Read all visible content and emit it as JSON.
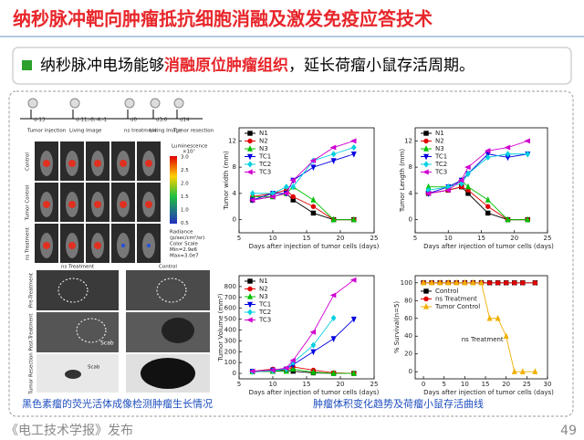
{
  "header": {
    "title": "纳秒脉冲靶向肿瘤抵抗细胞消融及激发免疫应答技术"
  },
  "bullet": {
    "parts": [
      "纳秒脉冲电场能够",
      "消融原位肿瘤组织",
      "，延长荷瘤小鼠存活周期。"
    ]
  },
  "imaging": {
    "timeline": [
      {
        "day": "d-13",
        "event": "Tumor injection"
      },
      {
        "day": "d-11,-8,-4,-1",
        "event": "Living Image"
      },
      {
        "day": "d0",
        "event": "ns treatment"
      },
      {
        "day": "d3,6",
        "event": "Living Image"
      },
      {
        "day": "d14",
        "event": "Tumor resection"
      }
    ],
    "rows": [
      "Control",
      "Tumor Control",
      "ns Treatment"
    ],
    "colorbar": {
      "title": "Luminescence",
      "unit": "×10⁷",
      "ticks": [
        "3.0",
        "2.5",
        "2.0",
        "1.5",
        "1.0",
        "0.5"
      ],
      "footer": [
        "Radiance",
        "(p/sec/cm²/sr)",
        "Color Scale",
        "Min=2.9e6",
        "Max=3.0e7"
      ]
    }
  },
  "photos": {
    "columns": [
      "ns Treatment",
      "Control"
    ],
    "rows": [
      "Pre-Treatment",
      "Post-Treatment",
      "Tumor Resection"
    ],
    "notes": [
      "Scab",
      "Scab"
    ]
  },
  "captions": [
    "黑色素瘤的荧光活体成像检测肿瘤生长情况",
    "肿瘤体积变化趋势及荷瘤小鼠存活曲线"
  ],
  "footer": {
    "source": "《电工技术学报》发布",
    "page": "49"
  },
  "chart_data": [
    {
      "type": "line",
      "xlabel": "Days after  injection of tumor cells (days)",
      "ylabel": "Tumor width (mm)",
      "x": [
        7,
        10,
        12,
        13,
        16,
        19,
        22
      ],
      "xlim": [
        5,
        25
      ],
      "xticks": [
        5,
        10,
        15,
        20,
        25
      ],
      "ylim": [
        -2,
        14
      ],
      "yticks": [
        0,
        4,
        8,
        12
      ],
      "legend": "upper left",
      "series": [
        {
          "name": "N1",
          "color": "#000000",
          "marker": "square",
          "values": [
            3,
            3.5,
            4,
            3,
            1,
            0,
            0
          ]
        },
        {
          "name": "N2",
          "color": "#e00000",
          "marker": "circle",
          "values": [
            3.5,
            4,
            4.5,
            3.5,
            2,
            0,
            0
          ]
        },
        {
          "name": "N3",
          "color": "#00c000",
          "marker": "up",
          "values": [
            3.5,
            3.5,
            4,
            5,
            3,
            0,
            0
          ]
        },
        {
          "name": "TC1",
          "color": "#0000e0",
          "marker": "down",
          "values": [
            3,
            4,
            4,
            6,
            8,
            9,
            10
          ]
        },
        {
          "name": "TC2",
          "color": "#00d0e0",
          "marker": "diamond",
          "values": [
            4,
            4,
            5,
            5,
            9,
            10,
            11
          ]
        },
        {
          "name": "TC3",
          "color": "#d000d0",
          "marker": "left",
          "values": [
            3,
            3.5,
            4,
            6,
            9,
            11,
            12
          ]
        }
      ]
    },
    {
      "type": "line",
      "xlabel": "Days after  injection of tumor cells (days)",
      "ylabel": "Tumor Length (mm)",
      "x": [
        7,
        10,
        12,
        13,
        16,
        19,
        22
      ],
      "xlim": [
        5,
        25
      ],
      "xticks": [
        5,
        10,
        15,
        20,
        25
      ],
      "ylim": [
        -2,
        14
      ],
      "yticks": [
        0,
        4,
        8,
        12
      ],
      "legend": "upper left",
      "series": [
        {
          "name": "N1",
          "color": "#000000",
          "marker": "square",
          "values": [
            4,
            4.5,
            5,
            4,
            1,
            0,
            0
          ]
        },
        {
          "name": "N2",
          "color": "#e00000",
          "marker": "circle",
          "values": [
            4,
            4.5,
            5,
            4.5,
            2,
            0,
            0
          ]
        },
        {
          "name": "N3",
          "color": "#00c000",
          "marker": "up",
          "values": [
            5,
            5,
            6,
            5,
            3,
            0,
            0
          ]
        },
        {
          "name": "TC1",
          "color": "#0000e0",
          "marker": "down",
          "values": [
            4,
            5,
            6,
            7,
            10,
            9.5,
            10
          ]
        },
        {
          "name": "TC2",
          "color": "#00d0e0",
          "marker": "diamond",
          "values": [
            4.5,
            5,
            5.5,
            7,
            9.5,
            10,
            10
          ]
        },
        {
          "name": "TC3",
          "color": "#d000d0",
          "marker": "left",
          "values": [
            4,
            4.5,
            6,
            8,
            10.5,
            11,
            12
          ]
        }
      ]
    },
    {
      "type": "line",
      "xlabel": "Days after  injection of tumor cells (days)",
      "ylabel": "Tumor Volume (mm³)",
      "x": [
        7,
        10,
        12,
        13,
        16,
        19,
        22
      ],
      "xlim": [
        5,
        25
      ],
      "xticks": [
        5,
        10,
        15,
        20,
        25
      ],
      "ylim": [
        -50,
        900
      ],
      "yticks": [
        0,
        100,
        200,
        300,
        400,
        500,
        600,
        700,
        800
      ],
      "legend": "upper left",
      "series": [
        {
          "name": "N1",
          "color": "#000000",
          "marker": "square",
          "values": [
            15,
            20,
            30,
            20,
            5,
            0,
            0
          ]
        },
        {
          "name": "N2",
          "color": "#e00000",
          "marker": "circle",
          "values": [
            20,
            40,
            30,
            60,
            30,
            5,
            0
          ]
        },
        {
          "name": "N3",
          "color": "#00c000",
          "marker": "up",
          "values": [
            15,
            20,
            20,
            40,
            10,
            0,
            0
          ]
        },
        {
          "name": "TC1",
          "color": "#0000e0",
          "marker": "down",
          "values": [
            20,
            30,
            40,
            80,
            200,
            320,
            500
          ]
        },
        {
          "name": "TC2",
          "color": "#00d0e0",
          "marker": "diamond",
          "values": [
            15,
            25,
            40,
            100,
            260,
            510,
            null
          ]
        },
        {
          "name": "TC3",
          "color": "#d000d0",
          "marker": "left",
          "values": [
            20,
            30,
            50,
            120,
            380,
            720,
            860
          ]
        }
      ]
    },
    {
      "type": "line",
      "xlabel": "Days after  injection of tumor cells (days)",
      "ylabel": "% Survival(n=5)",
      "x": [
        0,
        2,
        4,
        6,
        8,
        10,
        12,
        14,
        16,
        18,
        20,
        22,
        24,
        27
      ],
      "xlim": [
        -2,
        30
      ],
      "xticks": [
        0,
        5,
        10,
        15,
        20,
        25,
        30
      ],
      "ylim": [
        -8,
        108
      ],
      "yticks": [
        0,
        20,
        40,
        60,
        80,
        100
      ],
      "legend": "center left",
      "annotation": "ns Treatment",
      "series": [
        {
          "name": "Control",
          "color": "#000000",
          "marker": "square",
          "values": [
            100,
            100,
            100,
            100,
            100,
            100,
            100,
            100,
            100,
            100,
            100,
            100,
            100,
            100
          ]
        },
        {
          "name": "ns Treatment",
          "color": "#e00000",
          "marker": "circle",
          "values": [
            100,
            100,
            100,
            100,
            100,
            100,
            100,
            100,
            100,
            100,
            100,
            100,
            100,
            100
          ]
        },
        {
          "name": "Tumor Control",
          "color": "#f0b000",
          "marker": "up",
          "values": [
            100,
            100,
            100,
            100,
            100,
            100,
            100,
            100,
            60,
            60,
            40,
            0,
            0,
            0
          ]
        }
      ]
    }
  ]
}
